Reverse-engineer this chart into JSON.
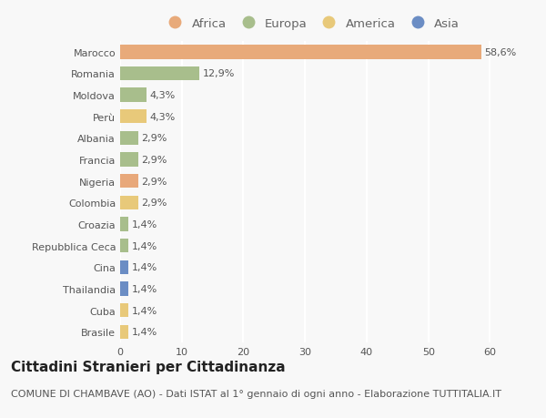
{
  "categories": [
    "Marocco",
    "Romania",
    "Moldova",
    "Perù",
    "Albania",
    "Francia",
    "Nigeria",
    "Colombia",
    "Croazia",
    "Repubblica Ceca",
    "Cina",
    "Thailandia",
    "Cuba",
    "Brasile"
  ],
  "values": [
    58.6,
    12.9,
    4.3,
    4.3,
    2.9,
    2.9,
    2.9,
    2.9,
    1.4,
    1.4,
    1.4,
    1.4,
    1.4,
    1.4
  ],
  "labels": [
    "58,6%",
    "12,9%",
    "4,3%",
    "4,3%",
    "2,9%",
    "2,9%",
    "2,9%",
    "2,9%",
    "1,4%",
    "1,4%",
    "1,4%",
    "1,4%",
    "1,4%",
    "1,4%"
  ],
  "colors": [
    "#e8aa7a",
    "#a8be8c",
    "#a8be8c",
    "#e8c97a",
    "#a8be8c",
    "#a8be8c",
    "#e8a87a",
    "#e8c97a",
    "#a8be8c",
    "#a8be8c",
    "#6b8dc4",
    "#6b8dc4",
    "#e8c97a",
    "#e8c97a"
  ],
  "legend_labels": [
    "Africa",
    "Europa",
    "America",
    "Asia"
  ],
  "legend_colors": [
    "#e8aa7a",
    "#a8be8c",
    "#e8c97a",
    "#6b8dc4"
  ],
  "title": "Cittadini Stranieri per Cittadinanza",
  "subtitle": "COMUNE DI CHAMBAVE (AO) - Dati ISTAT al 1° gennaio di ogni anno - Elaborazione TUTTITALIA.IT",
  "xlim": [
    0,
    62
  ],
  "xticks": [
    0,
    10,
    20,
    30,
    40,
    50,
    60
  ],
  "background_color": "#f8f8f8",
  "bar_height": 0.65,
  "title_fontsize": 11,
  "subtitle_fontsize": 8,
  "label_fontsize": 8,
  "tick_fontsize": 8,
  "legend_fontsize": 9.5
}
